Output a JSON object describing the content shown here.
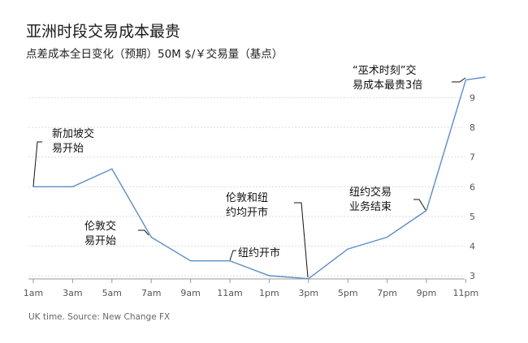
{
  "title": "亚洲时段交易成本最贵",
  "subtitle": "点差成本全日变化（预期）50M $/￥交易量（基点）",
  "source": "UK time. Source: New Change FX",
  "colors": {
    "line": "#5b8ec9",
    "grid": "#dcdcdc",
    "axis": "#9a9a9a",
    "text": "#222222"
  },
  "chart_data": {
    "type": "line",
    "x": [
      "1am",
      "3am",
      "5am",
      "7am",
      "9am",
      "11am",
      "1pm",
      "3pm",
      "5pm",
      "7pm",
      "9pm",
      "11pm"
    ],
    "xlabel": "",
    "ylabel": "",
    "ylim": [
      3,
      10
    ],
    "yticks": [
      3,
      4,
      5,
      6,
      7,
      8,
      9
    ],
    "grid": true,
    "x_positions": [
      0,
      1,
      2,
      3,
      4,
      5,
      6,
      7,
      8,
      9,
      10,
      11,
      11.5
    ],
    "values": [
      6.0,
      6.0,
      6.6,
      4.3,
      3.5,
      3.5,
      3.0,
      2.9,
      3.9,
      4.3,
      5.2,
      9.6
    ],
    "points": [
      {
        "x": "1am",
        "y": 6.0
      },
      {
        "x": "3am",
        "y": 6.0
      },
      {
        "x": "5am",
        "y": 6.6
      },
      {
        "x": "7am",
        "y": 4.3
      },
      {
        "x": "9am",
        "y": 3.5
      },
      {
        "x": "11am",
        "y": 3.5
      },
      {
        "x": "1pm",
        "y": 3.0
      },
      {
        "x": "3pm",
        "y": 2.9
      },
      {
        "x": "5pm",
        "y": 3.9
      },
      {
        "x": "7pm",
        "y": 4.3
      },
      {
        "x": "9pm",
        "y": 5.2
      },
      {
        "x": "11pm",
        "y": 9.6
      },
      {
        "x": "after 11pm",
        "y": 9.7
      }
    ],
    "annotations": [
      {
        "text_lines": [
          "新加坡交",
          "易开始"
        ],
        "at": "1am",
        "y": 6.0
      },
      {
        "text_lines": [
          "伦敦交",
          "易开始"
        ],
        "at": "7am",
        "y": 4.3
      },
      {
        "text_lines": [
          "纽约开市"
        ],
        "at": "11am",
        "y": 3.5
      },
      {
        "text_lines": [
          "伦敦和纽",
          "约均开市"
        ],
        "at": "3pm",
        "y": 2.9
      },
      {
        "text_lines": [
          "纽约交易",
          "业务结束"
        ],
        "at": "9pm",
        "y": 5.2
      },
      {
        "text_lines": [
          "“巫术时刻”交",
          "易成本最贵3倍"
        ],
        "at": "11pm",
        "y": 9.7
      }
    ]
  }
}
